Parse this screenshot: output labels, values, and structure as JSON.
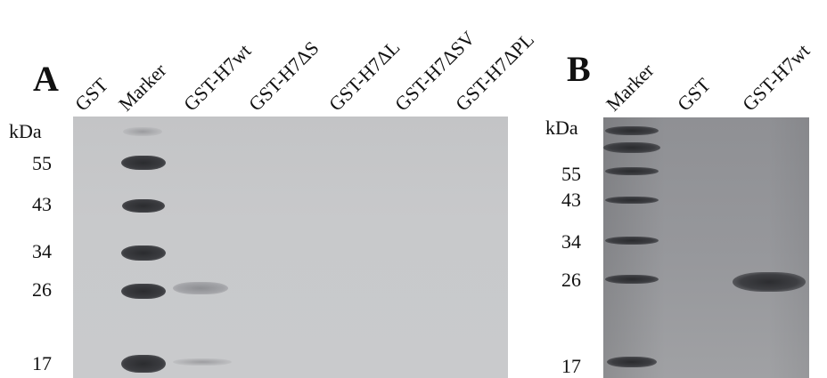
{
  "panel_a": {
    "letter": "A",
    "unit_label": "kDa",
    "lanes": [
      "GST",
      "Marker",
      "GST-H7wt",
      "GST-H7ΔS",
      "GST-H7ΔL",
      "GST-H7ΔSV",
      "GST-H7ΔPL"
    ],
    "markers": [
      "55",
      "43",
      "34",
      "26",
      "17"
    ]
  },
  "panel_b": {
    "letter": "B",
    "unit_label": "kDa",
    "lanes": [
      "Marker",
      "GST",
      "GST-H7wt"
    ],
    "markers": [
      "55",
      "43",
      "34",
      "26",
      "17"
    ]
  }
}
